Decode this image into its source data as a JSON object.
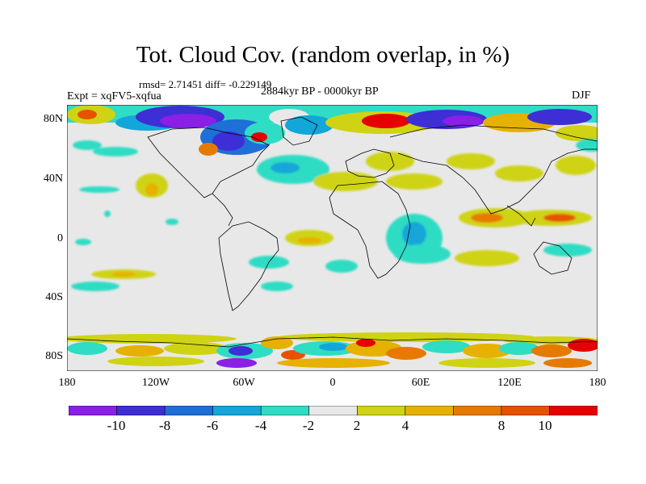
{
  "title": "Tot. Cloud Cov. (random overlap, in %)",
  "stats": "rmsd= 2.71451  diff= -0.229149",
  "experiment": "Expt = xqFV5-xqfua",
  "period": "2884kyr BP - 0000kyr BP",
  "season": "DJF",
  "axes": {
    "y_ticks": [
      "80N",
      "40N",
      "0",
      "40S",
      "80S"
    ],
    "x_ticks": [
      "180",
      "120W",
      "60W",
      "0",
      "60E",
      "120E",
      "180"
    ]
  },
  "colorbar": {
    "labels": [
      "-10",
      "-8",
      "-6",
      "-4",
      "-2",
      "2",
      "4",
      "8",
      "10"
    ],
    "colors": [
      "#8a1fe6",
      "#3d2ed6",
      "#1e6fd6",
      "#13a6d8",
      "#2fdcc4",
      "#e8e8e8",
      "#cfd313",
      "#e6b100",
      "#e67a00",
      "#e65200",
      "#e60000"
    ]
  },
  "map_colors": {
    "background": "#e8e8e8",
    "coast": "#000000"
  }
}
